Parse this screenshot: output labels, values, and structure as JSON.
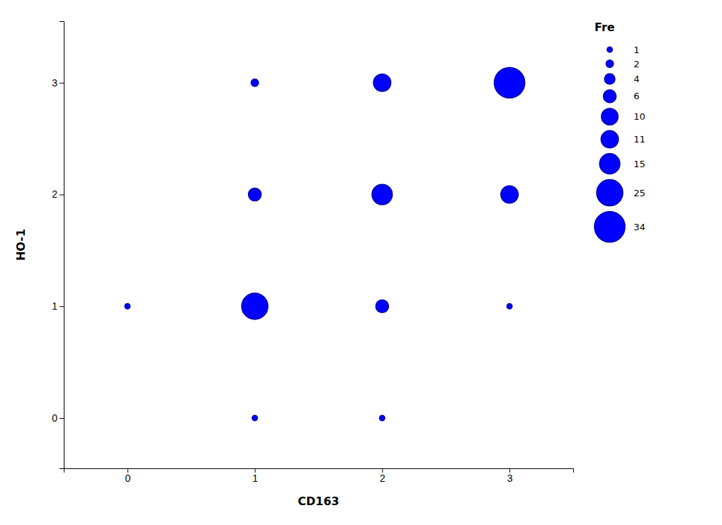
{
  "chart_data": {
    "type": "bubble",
    "xlabel": "CD163",
    "ylabel": "HO-1",
    "x": [
      0,
      1,
      1,
      1,
      1,
      2,
      2,
      2,
      2,
      3,
      3,
      3
    ],
    "values": [
      1,
      0,
      1,
      2,
      3,
      0,
      1,
      2,
      3,
      1,
      2,
      3
    ],
    "sizes": [
      1,
      1,
      25,
      6,
      2,
      1,
      6,
      15,
      11,
      1,
      11,
      34
    ],
    "color": "#0000FF",
    "legend": "right",
    "legend_title": "Fre",
    "legend_sizes": [
      1,
      2,
      4,
      6,
      10,
      11,
      15,
      25,
      34
    ],
    "xlim": [
      -0.5,
      3.5
    ],
    "ylim": [
      -0.45,
      3.55
    ],
    "xticks": [
      0,
      1,
      2,
      3
    ],
    "yticks": [
      0,
      1,
      2,
      3
    ],
    "grid": false
  }
}
